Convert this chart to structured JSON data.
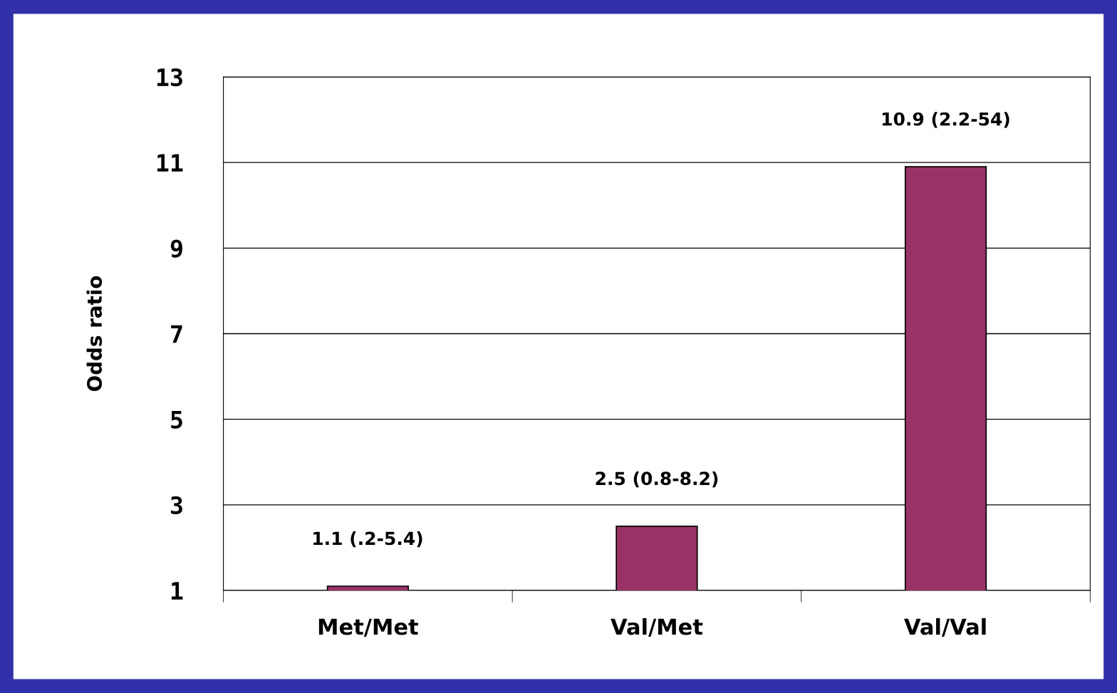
{
  "chart_data": {
    "type": "bar",
    "ylabel": "Odds ratio",
    "categories": [
      "Met/Met",
      "Val/Met",
      "Val/Val"
    ],
    "values": [
      1.1,
      2.5,
      10.9
    ],
    "color": "#993366",
    "value_labels": [
      "1.1 (.2-5.4)",
      "2.5 (0.8-8.2)",
      "10.9 (2.2-54)"
    ],
    "ylim": [
      1,
      13
    ],
    "yticks": [
      1,
      3,
      5,
      7,
      9,
      11,
      13
    ],
    "grid": "y",
    "legend": false
  }
}
